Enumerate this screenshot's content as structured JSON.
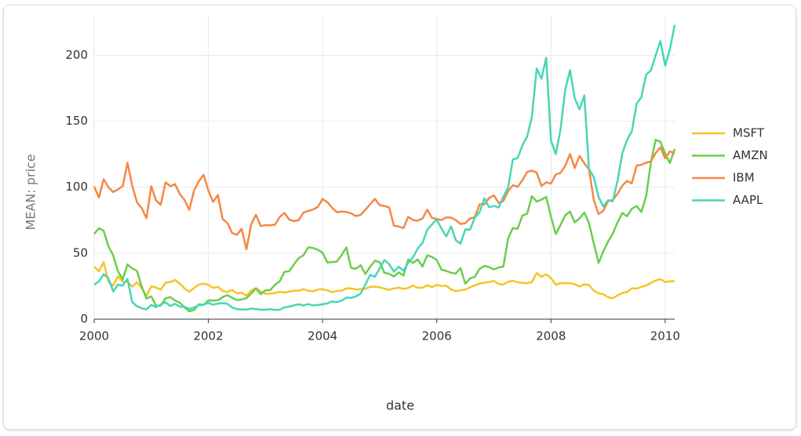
{
  "chart_data": {
    "type": "line",
    "x_label": "date",
    "y_label": "MEAN: price",
    "x": [
      "2000-01",
      "2000-02",
      "2000-03",
      "2000-04",
      "2000-05",
      "2000-06",
      "2000-07",
      "2000-08",
      "2000-09",
      "2000-10",
      "2000-11",
      "2000-12",
      "2001-01",
      "2001-02",
      "2001-03",
      "2001-04",
      "2001-05",
      "2001-06",
      "2001-07",
      "2001-08",
      "2001-09",
      "2001-10",
      "2001-11",
      "2001-12",
      "2002-01",
      "2002-02",
      "2002-03",
      "2002-04",
      "2002-05",
      "2002-06",
      "2002-07",
      "2002-08",
      "2002-09",
      "2002-10",
      "2002-11",
      "2002-12",
      "2003-01",
      "2003-02",
      "2003-03",
      "2003-04",
      "2003-05",
      "2003-06",
      "2003-07",
      "2003-08",
      "2003-09",
      "2003-10",
      "2003-11",
      "2003-12",
      "2004-01",
      "2004-02",
      "2004-03",
      "2004-04",
      "2004-05",
      "2004-06",
      "2004-07",
      "2004-08",
      "2004-09",
      "2004-10",
      "2004-11",
      "2004-12",
      "2005-01",
      "2005-02",
      "2005-03",
      "2005-04",
      "2005-05",
      "2005-06",
      "2005-07",
      "2005-08",
      "2005-09",
      "2005-10",
      "2005-11",
      "2005-12",
      "2006-01",
      "2006-02",
      "2006-03",
      "2006-04",
      "2006-05",
      "2006-06",
      "2006-07",
      "2006-08",
      "2006-09",
      "2006-10",
      "2006-11",
      "2006-12",
      "2007-01",
      "2007-02",
      "2007-03",
      "2007-04",
      "2007-05",
      "2007-06",
      "2007-07",
      "2007-08",
      "2007-09",
      "2007-10",
      "2007-11",
      "2007-12",
      "2008-01",
      "2008-02",
      "2008-03",
      "2008-04",
      "2008-05",
      "2008-06",
      "2008-07",
      "2008-08",
      "2008-09",
      "2008-10",
      "2008-11",
      "2008-12",
      "2009-01",
      "2009-02",
      "2009-03",
      "2009-04",
      "2009-05",
      "2009-06",
      "2009-07",
      "2009-08",
      "2009-09",
      "2009-10",
      "2009-11",
      "2009-12",
      "2010-01",
      "2010-02",
      "2010-03"
    ],
    "series": [
      {
        "name": "MSFT",
        "color": "#f7c325",
        "values": [
          39.81,
          36.35,
          43.22,
          28.37,
          25.45,
          32.54,
          28.4,
          28.4,
          24.53,
          28.02,
          23.34,
          17.65,
          24.84,
          24,
          22.25,
          27.56,
          28.14,
          29.7,
          26.93,
          23.21,
          20.82,
          23.65,
          26.12,
          26.95,
          25.92,
          23.73,
          24.53,
          21.26,
          20.71,
          22.25,
          19.52,
          19.97,
          17.79,
          21.75,
          23.46,
          21.03,
          19.31,
          19.34,
          19.76,
          20.87,
          20.09,
          20.93,
          21.56,
          21.65,
          22.69,
          21.45,
          21.1,
          22.46,
          22.69,
          21.77,
          20.46,
          21.45,
          21.53,
          23.44,
          23.38,
          22.47,
          22.76,
          23.02,
          24.6,
          24.52,
          24.11,
          23.15,
          22.24,
          23.28,
          23.82,
          22.93,
          23.64,
          25.35,
          23.83,
          23.8,
          25.71,
          24.29,
          26.14,
          25.04,
          25.36,
          22.5,
          21.19,
          21.8,
          22.51,
          24.13,
          25.68,
          26.96,
          27.66,
          28.13,
          29.07,
          26.63,
          26.35,
          28.3,
          29.11,
          27.95,
          27.5,
          27.34,
          28.04,
          35.03,
          32.09,
          34,
          31.13,
          26.07,
          27.21,
          27.34,
          27.25,
          26.47,
          24.75,
          26.36,
          25.78,
          21.57,
          19.66,
          18.91,
          16.63,
          15.81,
          17.99,
          19.84,
          20.59,
          23.42,
          23.18,
          24.43,
          25.49,
          27.48,
          29.27,
          30.34,
          28.05,
          28.67,
          28.8
        ]
      },
      {
        "name": "AMZN",
        "color": "#6ace4c",
        "values": [
          64.56,
          68.87,
          67,
          55.19,
          48.31,
          36.31,
          30.12,
          41.5,
          38.44,
          36.62,
          24.69,
          15.56,
          17.31,
          10.19,
          10.23,
          15.78,
          16.69,
          14.15,
          12.49,
          8.94,
          5.97,
          6.98,
          11.32,
          10.82,
          14.19,
          14.1,
          14.3,
          16.69,
          18.23,
          16.25,
          14.45,
          14.94,
          15.93,
          19.36,
          23.35,
          18.89,
          21.85,
          22.01,
          26.03,
          28.69,
          35.89,
          36.32,
          41.64,
          46.32,
          48.43,
          54.43,
          53.97,
          52.62,
          50.4,
          43.01,
          43.28,
          43.6,
          48.5,
          54.4,
          38.92,
          38.14,
          40.86,
          34.13,
          39.68,
          44.29,
          43.22,
          35.18,
          34.27,
          32.36,
          35.51,
          33.09,
          45.15,
          42.7,
          45.3,
          39.86,
          48.46,
          47.15,
          44.82,
          37.44,
          36.53,
          35.21,
          34.61,
          38.68,
          26.89,
          30.83,
          32.12,
          38.09,
          40.34,
          39.46,
          37.67,
          39.14,
          39.79,
          61.33,
          69.14,
          68.41,
          78.54,
          79.91,
          93.15,
          89.15,
          90.56,
          92.64,
          77.7,
          64.47,
          71.3,
          78.63,
          81.62,
          73.33,
          76.34,
          80.81,
          72.76,
          57.24,
          42.7,
          51.28,
          58.82,
          64.79,
          73.44,
          80.52,
          77.99,
          83.66,
          85.76,
          81.19,
          93.36,
          118.81,
          135.91,
          134.52,
          125.41,
          118.4,
          128.82
        ]
      },
      {
        "name": "IBM",
        "color": "#f58746",
        "values": [
          100.52,
          92.11,
          106.11,
          99.95,
          96.31,
          98.33,
          100.74,
          118.62,
          101.19,
          88.5,
          84.12,
          76.47,
          100.76,
          89.98,
          86.63,
          103.7,
          100.82,
          102.35,
          94.87,
          90.25,
          82.82,
          97.58,
          104.5,
          109.36,
          97.54,
          88.82,
          94.15,
          75.82,
          72.97,
          65.31,
          63.86,
          68.52,
          53.01,
          71.76,
          79.16,
          70.58,
          71.22,
          71.13,
          71.57,
          77.47,
          80.48,
          75.42,
          74.28,
          75.12,
          80.91,
          81.96,
          83.08,
          85.05,
          91.06,
          88.7,
          84.41,
          81.04,
          81.59,
          81.19,
          80.19,
          78.17,
          79.13,
          82.84,
          87.15,
          91.16,
          86.39,
          85.78,
          84.66,
          70.77,
          70.18,
          68.93,
          77.53,
          75.07,
          74.7,
          76.25,
          82.98,
          76.73,
          75.89,
          75.09,
          77.17,
          77.05,
          75.04,
          72.15,
          72.7,
          76.35,
          77.26,
          87.06,
          86.95,
          91.9,
          93.79,
          88.18,
          89.44,
          96.98,
          101.54,
          100.25,
          105.4,
          111.54,
          112.6,
          111,
          100.9,
          103.7,
          102.75,
          109.64,
          110.87,
          116.23,
          125.14,
          114.6,
          123.74,
          118.16,
          113.53,
          90.24,
          79.65,
          82.15,
          89.46,
          90.32,
          95.09,
          101.29,
          104.85,
          103.01,
          116.34,
          117,
          118.55,
          119.54,
          125.79,
          130.32,
          121.85,
          127.16,
          125.55
        ]
      },
      {
        "name": "AAPL",
        "color": "#47d6b6",
        "values": [
          25.94,
          28.66,
          33.95,
          31.01,
          21,
          26.19,
          25.41,
          30.47,
          12.88,
          9.78,
          8.25,
          7.44,
          10.81,
          9.12,
          11.03,
          12.74,
          9.98,
          11.62,
          9.4,
          9.27,
          7.76,
          8.78,
          10.65,
          10.95,
          12.36,
          10.85,
          11.84,
          12.14,
          11.65,
          8.86,
          7.63,
          7.38,
          7.25,
          8.03,
          7.75,
          7.16,
          7.18,
          7.51,
          7.07,
          7.11,
          8.98,
          9.53,
          10.54,
          11.31,
          10.36,
          11.44,
          10.45,
          10.69,
          11.28,
          11.96,
          13.52,
          12.89,
          14.03,
          16.27,
          16.17,
          17.25,
          19.38,
          26.2,
          33.53,
          32.2,
          38.45,
          44.86,
          41.67,
          36.06,
          39.76,
          36.81,
          42.65,
          46.89,
          53.61,
          57.59,
          67.82,
          71.89,
          75.51,
          68.49,
          62.72,
          70.39,
          59.77,
          57.27,
          67.96,
          67.85,
          76.98,
          81.08,
          91.66,
          84.84,
          85.73,
          84.61,
          92.91,
          99.8,
          121.19,
          122.04,
          131.76,
          138.48,
          153.47,
          189.95,
          182.22,
          198.08,
          135.36,
          125.02,
          143.5,
          173.95,
          188.75,
          167.44,
          158.95,
          169.53,
          113.66,
          107.59,
          92.67,
          85.35,
          90.13,
          89.31,
          105.12,
          125.83,
          135.81,
          142.43,
          163.39,
          168.21,
          185.35,
          188.5,
          199.91,
          210.73,
          192.06,
          204.62,
          223.02
        ]
      }
    ],
    "xlim": [
      "2000-01",
      "2010-03"
    ],
    "xticks": [
      2000,
      2002,
      2004,
      2006,
      2008,
      2010
    ],
    "ylim": [
      0,
      230
    ],
    "yticks": [
      0,
      50,
      100,
      150,
      200
    ],
    "grid": true,
    "legend": "right"
  }
}
